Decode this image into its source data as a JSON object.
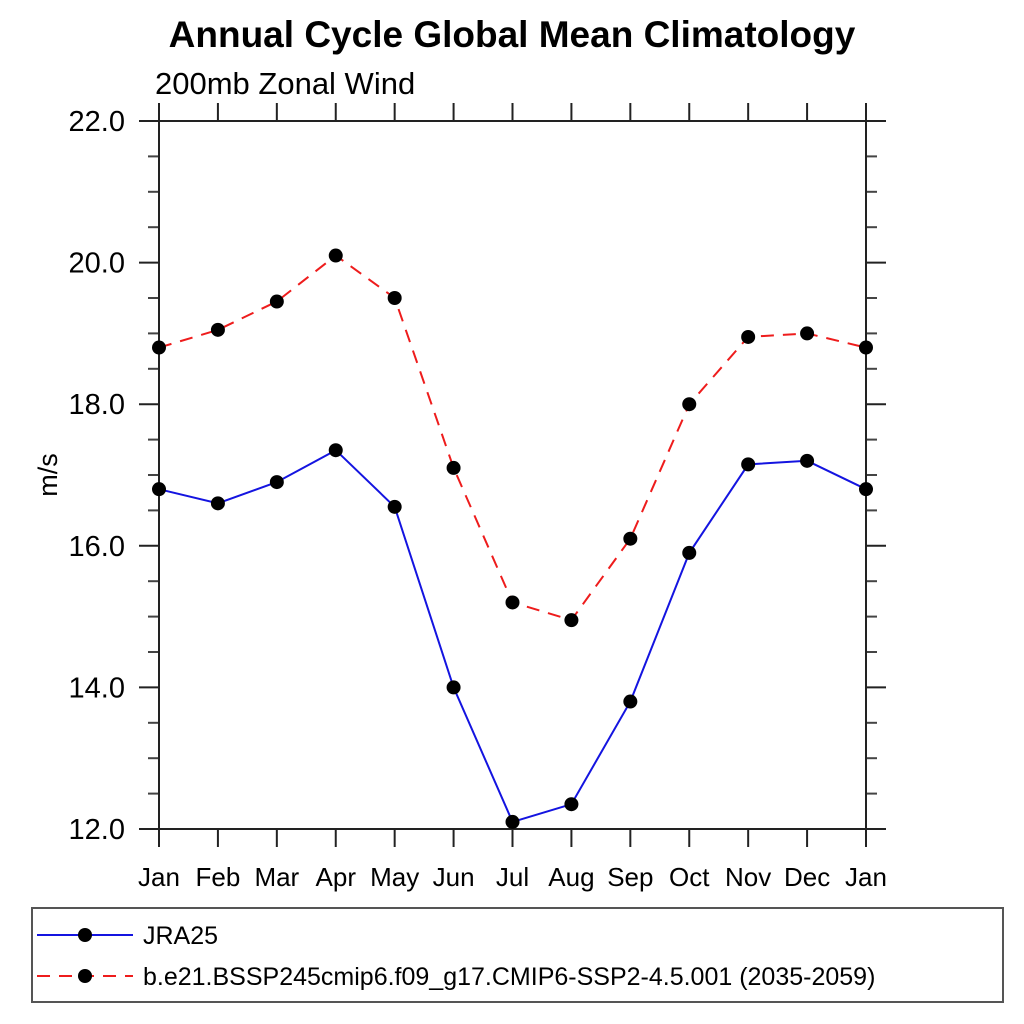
{
  "title": "Annual Cycle Global Mean Climatology",
  "subtitle": "200mb Zonal Wind",
  "chart_data": {
    "type": "line",
    "x_categories": [
      "Jan",
      "Feb",
      "Mar",
      "Apr",
      "May",
      "Jun",
      "Jul",
      "Aug",
      "Sep",
      "Oct",
      "Nov",
      "Dec",
      "Jan"
    ],
    "ylabel": "m/s",
    "ylim": [
      12.0,
      22.0
    ],
    "y_major_ticks": [
      22.0,
      20.0,
      18.0,
      16.0,
      14.0,
      12.0
    ],
    "y_tick_labels": [
      "22.0",
      "20.0",
      "18.0",
      "16.0",
      "14.0",
      "12.0"
    ],
    "y_minor_step": 0.5,
    "grid": false,
    "legend_position": "bottom-left-box",
    "series": [
      {
        "name": "JRA25",
        "color": "#1414e0",
        "line_style": "solid",
        "marker": "filled-circle",
        "marker_color": "#000000",
        "values": [
          16.8,
          16.6,
          16.9,
          17.35,
          16.55,
          14.0,
          12.1,
          12.35,
          13.8,
          15.9,
          17.15,
          17.2,
          16.8
        ]
      },
      {
        "name": "b.e21.BSSP245cmip6.f09_g17.CMIP6-SSP2-4.5.001 (2035-2059)",
        "color": "#ee1c1c",
        "line_style": "dashed",
        "marker": "filled-circle",
        "marker_color": "#000000",
        "values": [
          18.8,
          19.05,
          19.45,
          20.1,
          19.5,
          17.1,
          15.2,
          14.95,
          16.1,
          18.0,
          18.95,
          19.0,
          18.8
        ]
      }
    ]
  }
}
